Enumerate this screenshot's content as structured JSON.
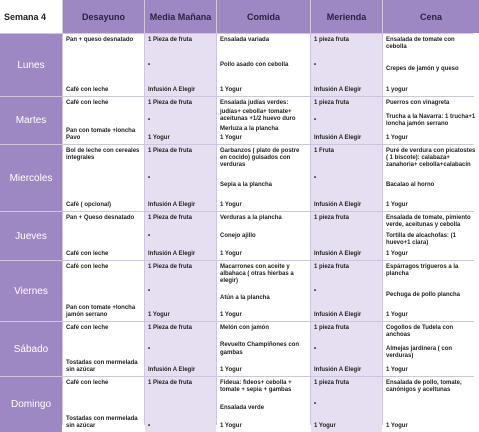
{
  "table": {
    "header": [
      "Semana 4",
      "Desayuno",
      "Media Mañana",
      "Comida",
      "Merienda",
      "Cena"
    ],
    "rows": [
      {
        "day": "Lunes",
        "cells": [
          [
            "Pan + queso desnatado",
            "Café con leche"
          ],
          [
            "1 Pieza de fruta",
            "•",
            "Infusión A Elegir"
          ],
          [
            "Ensalada variada",
            "Pollo asado con cebolla",
            "1 Yogur"
          ],
          [
            "1 pieza fruta",
            "•",
            "Infusión A Elegir"
          ],
          [
            "Ensalada de tomate con cebolla",
            "Crepes de jamón y queso",
            "1 yogur"
          ]
        ]
      },
      {
        "day": "Martes",
        "cells": [
          [
            "Café con leche",
            "Pan con tomate +loncha Pavo"
          ],
          [
            "1 Pieza de fruta",
            "•",
            "1 Yogur"
          ],
          [
            "Ensalada judías verdes:",
            "judías+ cebolla+ tomate+ aceitunas +1/2 huevo duro",
            "Merluza a la plancha",
            "1 Yogur"
          ],
          [
            "1 pieza fruta",
            "•",
            "Infusión A Elegir"
          ],
          [
            "Puerros con vinagreta",
            "Trucha a la Navarra: 1 trucha+1 loncha jamón serrano",
            "1 Yogur"
          ]
        ]
      },
      {
        "day": "Miercoles",
        "cells": [
          [
            "Bol de leche con cereales integrales",
            "Café ( opcional)"
          ],
          [
            "1 Pieza de fruta",
            "•",
            "Infusión A Elegir"
          ],
          [
            "Garbanzos ( plato de postre en cocido) guisados con verduras",
            "Sepia a la plancha",
            "1 Yogur"
          ],
          [
            "1 Fruta",
            "•",
            "Infusión A Elegir"
          ],
          [
            "Puré de verdura con picatostes ( 1 biscote): calabaza+ zanahoria+ cebolla+calabacín",
            "Bacalao al horno",
            "1 Yogur"
          ]
        ]
      },
      {
        "day": "Jueves",
        "cells": [
          [
            "Pan + Queso desnatado",
            "Café con leche"
          ],
          [
            "1 Pieza de fruta",
            "•",
            "Infusión A Elegir"
          ],
          [
            "Verduras a la plancha",
            "Conejo ajillo",
            "1 Yogur"
          ],
          [
            "1 pieza fruta",
            "Infusión A Elegir"
          ],
          [
            "Ensalada de tomate, pimiento verde, aceitunas y cebolla",
            "Tortilla de alcachofas: (1 huevo+1 clara)",
            "1 Yogur"
          ]
        ]
      },
      {
        "day": "Viernes",
        "cells": [
          [
            "Café con leche",
            "Pan con tomate +loncha jamón serrano"
          ],
          [
            "1 Pieza de fruta",
            "•",
            "1 Yogur"
          ],
          [
            "Macarrones con aceite y albahaca ( otras hierbas a elegir)",
            "Atún a la plancha",
            "1 Yogur"
          ],
          [
            "1 pieza fruta",
            "•",
            "Infusión A Elegir"
          ],
          [
            "Espárragos trigueros a la plancha",
            "Pechuga de pollo plancha",
            "1 Yogur"
          ]
        ]
      },
      {
        "day": "Sábado",
        "cells": [
          [
            "Café con leche",
            "Tostadas con mermelada sin azúcar"
          ],
          [
            "1 Pieza de fruta",
            "•",
            "Infusión A Elegir"
          ],
          [
            "Melón con jamón",
            "Revuelto Champiñones con gambas",
            "1 Yogur"
          ],
          [
            "1 pieza fruta",
            "•",
            "Infusión A Elegir"
          ],
          [
            "Cogollos de Tudela con anchoas",
            "Almejas jardinera ( con verduras)",
            "1 Yogur"
          ]
        ]
      },
      {
        "day": "Domingo",
        "cells": [
          [
            "Café con leche",
            "Tostadas con mermelada sin azúcar"
          ],
          [
            "1 Pieza de fruta",
            "•"
          ],
          [
            "Fideua: fideos+ cebolla + tomate + sepia + gambas",
            "Ensalada verde",
            "1 Yogur"
          ],
          [
            "1 pieza fruta",
            "•",
            "1 Yogur"
          ],
          [
            "Ensalada de pollo, tomate, canónigos y aceitunas",
            "1 Yogur"
          ]
        ]
      }
    ]
  }
}
